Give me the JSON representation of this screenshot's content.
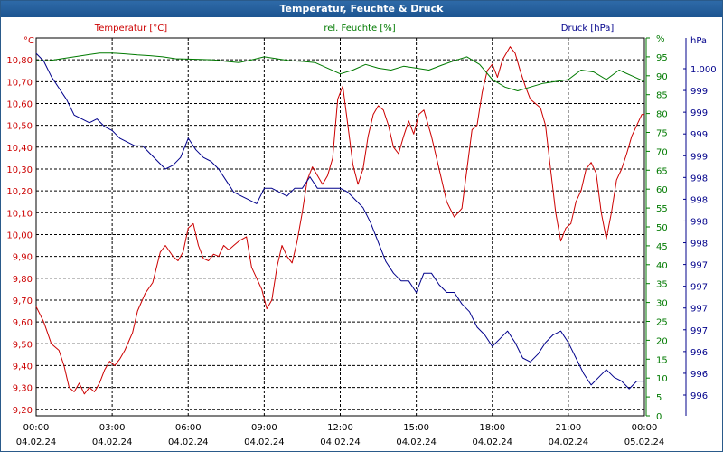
{
  "window": {
    "title": "Temperatur, Feuchte & Druck"
  },
  "colors": {
    "temperature": "#cc0000",
    "humidity": "#007a00",
    "pressure": "#00008b",
    "grid": "#000000"
  },
  "chart_data": {
    "type": "line",
    "title": "Temperatur, Feuchte & Druck",
    "grid": true,
    "x": {
      "range": [
        "04.02.24 00:00",
        "05.02.24 00:00"
      ],
      "ticks": [
        {
          "time": "00:00",
          "date": "04.02.24"
        },
        {
          "time": "03:00",
          "date": "04.02.24"
        },
        {
          "time": "06:00",
          "date": "04.02.24"
        },
        {
          "time": "09:00",
          "date": "04.02.24"
        },
        {
          "time": "12:00",
          "date": "04.02.24"
        },
        {
          "time": "15:00",
          "date": "04.02.24"
        },
        {
          "time": "18:00",
          "date": "04.02.24"
        },
        {
          "time": "21:00",
          "date": "04.02.24"
        },
        {
          "time": "00:00",
          "date": "05.02.24"
        }
      ]
    },
    "axes": {
      "temperature": {
        "name": "Temperatur [°C]",
        "unit": "°C",
        "range": [
          9.17,
          10.9
        ],
        "ticks": [
          "9,20",
          "9,30",
          "9,40",
          "9,50",
          "9,60",
          "9,70",
          "9,80",
          "9,90",
          "10,00",
          "10,10",
          "10,20",
          "10,30",
          "10,40",
          "10,50",
          "10,60",
          "10,70",
          "10,80"
        ]
      },
      "humidity": {
        "name": "rel. Feuchte [%]",
        "unit": "%",
        "range": [
          0,
          100
        ],
        "ticks": [
          "0",
          "5",
          "10",
          "15",
          "20",
          "25",
          "30",
          "35",
          "40",
          "45",
          "50",
          "55",
          "60",
          "65",
          "70",
          "75",
          "80",
          "85",
          "90",
          "95",
          "%"
        ]
      },
      "pressure": {
        "name": "Druck [hPa]",
        "unit": "hPa",
        "range": [
          995.6,
          1000.5
        ],
        "ticks": [
          "996",
          "996",
          "996",
          "997",
          "997",
          "997",
          "997",
          "998",
          "998",
          "998",
          "998",
          "999",
          "999",
          "999",
          "999",
          "1.000"
        ]
      }
    },
    "series": [
      {
        "name": "Temperatur [°C]",
        "axis": "temperature",
        "points": [
          [
            0,
            9.67
          ],
          [
            0.3,
            9.6
          ],
          [
            0.6,
            9.5
          ],
          [
            0.9,
            9.47
          ],
          [
            1.1,
            9.4
          ],
          [
            1.3,
            9.3
          ],
          [
            1.5,
            9.28
          ],
          [
            1.7,
            9.32
          ],
          [
            1.9,
            9.27
          ],
          [
            2.1,
            9.3
          ],
          [
            2.3,
            9.28
          ],
          [
            2.5,
            9.32
          ],
          [
            2.7,
            9.38
          ],
          [
            2.9,
            9.42
          ],
          [
            3.1,
            9.4
          ],
          [
            3.3,
            9.43
          ],
          [
            3.5,
            9.47
          ],
          [
            3.8,
            9.55
          ],
          [
            4.0,
            9.65
          ],
          [
            4.3,
            9.73
          ],
          [
            4.6,
            9.78
          ],
          [
            4.9,
            9.92
          ],
          [
            5.1,
            9.95
          ],
          [
            5.4,
            9.9
          ],
          [
            5.6,
            9.88
          ],
          [
            5.8,
            9.92
          ],
          [
            6.0,
            10.03
          ],
          [
            6.2,
            10.05
          ],
          [
            6.4,
            9.95
          ],
          [
            6.6,
            9.89
          ],
          [
            6.8,
            9.88
          ],
          [
            7.0,
            9.91
          ],
          [
            7.2,
            9.9
          ],
          [
            7.4,
            9.95
          ],
          [
            7.6,
            9.93
          ],
          [
            7.8,
            9.95
          ],
          [
            8.0,
            9.97
          ],
          [
            8.3,
            9.99
          ],
          [
            8.5,
            9.85
          ],
          [
            8.7,
            9.8
          ],
          [
            8.9,
            9.75
          ],
          [
            9.1,
            9.66
          ],
          [
            9.3,
            9.7
          ],
          [
            9.5,
            9.85
          ],
          [
            9.7,
            9.95
          ],
          [
            9.9,
            9.9
          ],
          [
            10.1,
            9.87
          ],
          [
            10.3,
            9.97
          ],
          [
            10.5,
            10.1
          ],
          [
            10.7,
            10.25
          ],
          [
            10.9,
            10.31
          ],
          [
            11.1,
            10.27
          ],
          [
            11.3,
            10.23
          ],
          [
            11.5,
            10.27
          ],
          [
            11.7,
            10.35
          ],
          [
            11.9,
            10.62
          ],
          [
            12.1,
            10.68
          ],
          [
            12.3,
            10.5
          ],
          [
            12.5,
            10.32
          ],
          [
            12.7,
            10.23
          ],
          [
            12.9,
            10.3
          ],
          [
            13.1,
            10.45
          ],
          [
            13.3,
            10.55
          ],
          [
            13.5,
            10.59
          ],
          [
            13.7,
            10.57
          ],
          [
            13.9,
            10.5
          ],
          [
            14.1,
            10.4
          ],
          [
            14.3,
            10.37
          ],
          [
            14.5,
            10.45
          ],
          [
            14.7,
            10.52
          ],
          [
            14.9,
            10.46
          ],
          [
            15.1,
            10.55
          ],
          [
            15.3,
            10.57
          ],
          [
            15.6,
            10.45
          ],
          [
            15.9,
            10.3
          ],
          [
            16.2,
            10.15
          ],
          [
            16.5,
            10.08
          ],
          [
            16.8,
            10.12
          ],
          [
            17.0,
            10.3
          ],
          [
            17.2,
            10.48
          ],
          [
            17.4,
            10.5
          ],
          [
            17.6,
            10.65
          ],
          [
            17.8,
            10.75
          ],
          [
            18.0,
            10.78
          ],
          [
            18.2,
            10.72
          ],
          [
            18.4,
            10.8
          ],
          [
            18.7,
            10.86
          ],
          [
            18.9,
            10.83
          ],
          [
            19.1,
            10.75
          ],
          [
            19.3,
            10.68
          ],
          [
            19.5,
            10.62
          ],
          [
            19.7,
            10.6
          ],
          [
            19.9,
            10.58
          ],
          [
            20.1,
            10.5
          ],
          [
            20.3,
            10.3
          ],
          [
            20.5,
            10.1
          ],
          [
            20.7,
            9.97
          ],
          [
            20.9,
            10.03
          ],
          [
            21.1,
            10.05
          ],
          [
            21.3,
            10.15
          ],
          [
            21.5,
            10.2
          ],
          [
            21.7,
            10.3
          ],
          [
            21.9,
            10.33
          ],
          [
            22.1,
            10.28
          ],
          [
            22.3,
            10.1
          ],
          [
            22.5,
            9.98
          ],
          [
            22.7,
            10.1
          ],
          [
            22.9,
            10.25
          ],
          [
            23.1,
            10.3
          ],
          [
            23.3,
            10.37
          ],
          [
            23.5,
            10.45
          ],
          [
            23.7,
            10.5
          ],
          [
            23.9,
            10.55
          ],
          [
            24,
            10.55
          ]
        ]
      },
      {
        "name": "rel. Feuchte [%]",
        "axis": "humidity",
        "points": [
          [
            0,
            94
          ],
          [
            0.5,
            94
          ],
          [
            1,
            94.5
          ],
          [
            1.5,
            95
          ],
          [
            2,
            95.5
          ],
          [
            2.5,
            96
          ],
          [
            3,
            96
          ],
          [
            3.5,
            95.8
          ],
          [
            4,
            95.5
          ],
          [
            4.5,
            95.3
          ],
          [
            5,
            95
          ],
          [
            5.5,
            94.5
          ],
          [
            6,
            94.4
          ],
          [
            6.5,
            94.3
          ],
          [
            7,
            94.2
          ],
          [
            7.5,
            93.8
          ],
          [
            8,
            93.5
          ],
          [
            8.5,
            94.2
          ],
          [
            9,
            95
          ],
          [
            9.5,
            94.5
          ],
          [
            10,
            94
          ],
          [
            10.5,
            93.8
          ],
          [
            11,
            93.5
          ],
          [
            11.5,
            92
          ],
          [
            12,
            90.5
          ],
          [
            12.5,
            91.5
          ],
          [
            13,
            93
          ],
          [
            13.5,
            92
          ],
          [
            14,
            91.5
          ],
          [
            14.5,
            92.5
          ],
          [
            15,
            92
          ],
          [
            15.5,
            91.5
          ],
          [
            16,
            92.8
          ],
          [
            16.5,
            94
          ],
          [
            17,
            95
          ],
          [
            17.5,
            93
          ],
          [
            18,
            89
          ],
          [
            18.5,
            87
          ],
          [
            19,
            86
          ],
          [
            19.5,
            87
          ],
          [
            20,
            88
          ],
          [
            20.5,
            88.5
          ],
          [
            21,
            89
          ],
          [
            21.5,
            91.5
          ],
          [
            22,
            91
          ],
          [
            22.5,
            89
          ],
          [
            23,
            91.5
          ],
          [
            23.5,
            90
          ],
          [
            24,
            88.5
          ]
        ]
      },
      {
        "name": "Druck [hPa]",
        "axis": "pressure",
        "points": [
          [
            0,
            1000.3
          ],
          [
            0.3,
            1000.2
          ],
          [
            0.6,
            1000.0
          ],
          [
            0.9,
            999.85
          ],
          [
            1.2,
            999.7
          ],
          [
            1.5,
            999.5
          ],
          [
            1.8,
            999.45
          ],
          [
            2.1,
            999.4
          ],
          [
            2.4,
            999.45
          ],
          [
            2.7,
            999.35
          ],
          [
            3.0,
            999.3
          ],
          [
            3.3,
            999.2
          ],
          [
            3.6,
            999.15
          ],
          [
            3.9,
            999.1
          ],
          [
            4.2,
            999.1
          ],
          [
            4.5,
            999.0
          ],
          [
            4.8,
            998.9
          ],
          [
            5.1,
            998.8
          ],
          [
            5.4,
            998.85
          ],
          [
            5.7,
            998.95
          ],
          [
            6.0,
            999.2
          ],
          [
            6.3,
            999.05
          ],
          [
            6.6,
            998.95
          ],
          [
            6.9,
            998.9
          ],
          [
            7.2,
            998.8
          ],
          [
            7.5,
            998.65
          ],
          [
            7.8,
            998.5
          ],
          [
            8.1,
            998.45
          ],
          [
            8.4,
            998.4
          ],
          [
            8.7,
            998.35
          ],
          [
            9.0,
            998.55
          ],
          [
            9.3,
            998.55
          ],
          [
            9.6,
            998.5
          ],
          [
            9.9,
            998.45
          ],
          [
            10.2,
            998.55
          ],
          [
            10.5,
            998.55
          ],
          [
            10.8,
            998.7
          ],
          [
            11.1,
            998.55
          ],
          [
            11.4,
            998.55
          ],
          [
            11.7,
            998.55
          ],
          [
            12.0,
            998.55
          ],
          [
            12.3,
            998.5
          ],
          [
            12.6,
            998.4
          ],
          [
            12.9,
            998.3
          ],
          [
            13.2,
            998.1
          ],
          [
            13.5,
            997.85
          ],
          [
            13.8,
            997.6
          ],
          [
            14.1,
            997.45
          ],
          [
            14.4,
            997.35
          ],
          [
            14.7,
            997.35
          ],
          [
            15.0,
            997.2
          ],
          [
            15.3,
            997.45
          ],
          [
            15.6,
            997.45
          ],
          [
            15.9,
            997.3
          ],
          [
            16.2,
            997.2
          ],
          [
            16.5,
            997.2
          ],
          [
            16.8,
            997.05
          ],
          [
            17.1,
            996.95
          ],
          [
            17.4,
            996.75
          ],
          [
            17.7,
            996.65
          ],
          [
            18.0,
            996.5
          ],
          [
            18.3,
            996.6
          ],
          [
            18.6,
            996.7
          ],
          [
            18.9,
            996.55
          ],
          [
            19.2,
            996.35
          ],
          [
            19.5,
            996.3
          ],
          [
            19.8,
            996.4
          ],
          [
            20.1,
            996.55
          ],
          [
            20.4,
            996.65
          ],
          [
            20.7,
            996.7
          ],
          [
            21.0,
            996.55
          ],
          [
            21.3,
            996.35
          ],
          [
            21.6,
            996.15
          ],
          [
            21.9,
            996.0
          ],
          [
            22.2,
            996.1
          ],
          [
            22.5,
            996.2
          ],
          [
            22.8,
            996.1
          ],
          [
            23.1,
            996.05
          ],
          [
            23.4,
            995.95
          ],
          [
            23.7,
            996.05
          ],
          [
            24,
            996.05
          ]
        ]
      }
    ]
  }
}
